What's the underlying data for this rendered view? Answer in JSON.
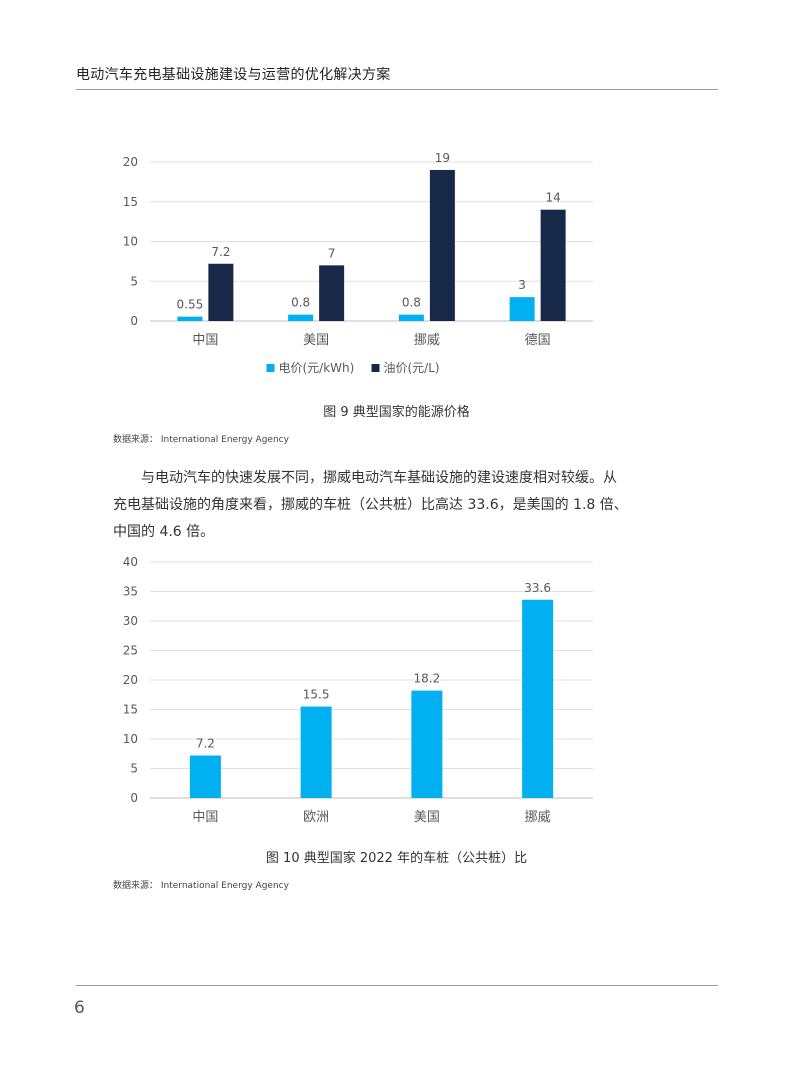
{
  "header": {
    "title": "电动汽车充电基础设施建设与运营的优化解决方案"
  },
  "figure9": {
    "caption": "图 9   典型国家的能源价格",
    "source": "数据来源： International Energy Agency",
    "chart_data": {
      "type": "bar",
      "categories": [
        "中国",
        "美国",
        "挪威",
        "德国"
      ],
      "series": [
        {
          "name": "电价(元/kWh)",
          "values": [
            0.55,
            0.8,
            0.8,
            3
          ],
          "labels": [
            "0.55",
            "0.8",
            "0.8",
            "3"
          ],
          "color": "#00b0f0"
        },
        {
          "name": "油价(元/L)",
          "values": [
            7.2,
            7,
            19,
            14
          ],
          "labels": [
            "7.2",
            "7",
            "19",
            "14"
          ],
          "color": "#172849"
        }
      ],
      "ylim": [
        0,
        20
      ],
      "yticks": [
        0,
        5,
        10,
        15,
        20
      ],
      "grid": true,
      "legend": "bottom"
    }
  },
  "paragraph": {
    "lines": [
      "与电动汽车的快速发展不同，挪威电动汽车基础设施的建设速度相对较缓。从",
      "充电基础设施的角度来看，挪威的车桩（公共桩）比高达 33.6，是美国的 1.8 倍、",
      "中国的 4.6 倍。"
    ]
  },
  "figure10": {
    "caption": "图 10   典型国家 2022 年的车桩（公共桩）比",
    "source": "数据来源： International Energy Agency",
    "chart_data": {
      "type": "bar",
      "categories": [
        "中国",
        "欧洲",
        "美国",
        "挪威"
      ],
      "series": [
        {
          "values": [
            7.2,
            15.5,
            18.2,
            33.6
          ],
          "labels": [
            "7.2",
            "15.5",
            "18.2",
            "33.6"
          ],
          "color": "#00b0f0"
        }
      ],
      "ylim": [
        0,
        40
      ],
      "yticks": [
        0,
        5,
        10,
        15,
        20,
        25,
        30,
        35,
        40
      ],
      "grid": true,
      "legend": "none"
    }
  },
  "footer": {
    "page_number": "6"
  }
}
